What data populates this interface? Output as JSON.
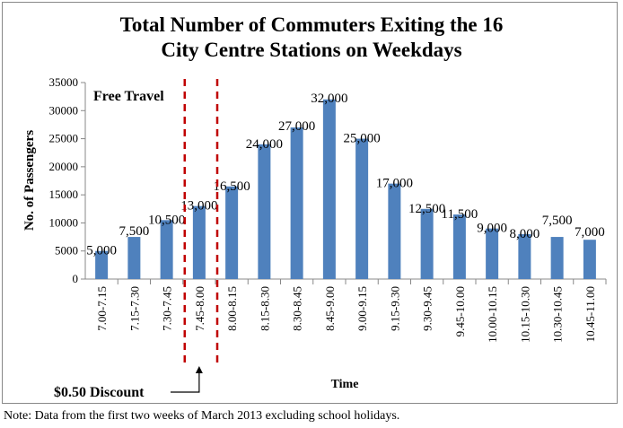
{
  "chart_data": {
    "type": "bar",
    "title_line1": "Total Number of Commuters Exiting the 16",
    "title_line2": "City Centre Stations on Weekdays",
    "xlabel": "Time",
    "ylabel": "No. of Passengers",
    "ylim": [
      0,
      35000
    ],
    "yticks": [
      "0",
      "5000",
      "10000",
      "15000",
      "20000",
      "25000",
      "30000",
      "35000"
    ],
    "grid": false,
    "bar_color": "#4F81BD",
    "categories": [
      "7.00-7.15",
      "7.15-7.30",
      "7.30-7.45",
      "7.45-8.00",
      "8.00-8.15",
      "8.15-8.30",
      "8.30-8.45",
      "8.45-9.00",
      "9.00-9.15",
      "9.15-9.30",
      "9.30-9.45",
      "9.45-10.00",
      "10.00-10.15",
      "10.15-10.30",
      "10.30-10.45",
      "10.45-11.00"
    ],
    "values": [
      5000,
      7500,
      10500,
      13000,
      16500,
      24000,
      27000,
      32000,
      25000,
      17000,
      12500,
      11500,
      9000,
      8000,
      7500,
      7000
    ],
    "data_labels": [
      "5,000",
      "7,500",
      "10,500",
      "13,000",
      "16,500",
      "24,000",
      "27,000",
      "32,000",
      "25,000",
      "17,000",
      "12,500",
      "11,500",
      "9,000",
      "8,000",
      "7,500",
      "7,000"
    ],
    "annotations": {
      "free_travel": "Free Travel",
      "discount": "$0.50 Discount",
      "dashed_line_color": "#C00000"
    }
  },
  "note": "Note: Data from the first two weeks of March 2013 excluding school holidays."
}
